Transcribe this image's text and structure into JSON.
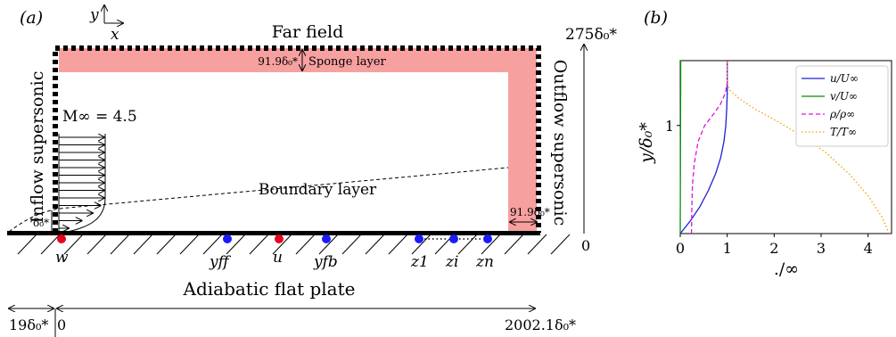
{
  "panel_a": {
    "label": "(a)",
    "axis_y": "y",
    "axis_x": "x",
    "far_field": "Far field",
    "top_height": "275δ₀*",
    "sponge_thickness": "91.9δ₀*",
    "sponge_layer": "Sponge layer",
    "inflow": "Inflow supersonic",
    "outflow": "Outflow supersonic",
    "mach": "M∞ = 4.5",
    "boundary_layer": "Boundary layer",
    "delta0": "δ₀*",
    "sponge_side_thickness": "91.9δ₀*",
    "zero_right": "0",
    "plate": "Adiabatic flat plate",
    "left_offset": "19δ₀*",
    "zero_bottom": "0",
    "length": "2002.1δ₀*",
    "probes": {
      "w": "w",
      "yff": "yff",
      "u": "u",
      "yfb": "yfb",
      "z1": "z1",
      "zi": "zi",
      "zn": "zn"
    },
    "colors": {
      "sponge": "#f7a0a0",
      "red_probe": "#e8001c",
      "blue_probe": "#1a1aff"
    }
  },
  "panel_b": {
    "label": "(b)",
    "chart_data": {
      "type": "line",
      "xlabel": "./∞",
      "ylabel": "y/δ₀*",
      "xlim": [
        0,
        4.5
      ],
      "ylim": [
        0,
        1.6
      ],
      "xticks": [
        0,
        1,
        2,
        3,
        4
      ],
      "yticks": [
        1
      ],
      "grid": false,
      "legend": "top-right",
      "series": [
        {
          "name": "u/U∞",
          "color": "#1f1fd6",
          "style": "solid",
          "x": [
            0,
            0.22,
            0.42,
            0.6,
            0.75,
            0.86,
            0.93,
            0.97,
            0.99,
            1.0,
            1.0
          ],
          "y": [
            0,
            0.12,
            0.25,
            0.4,
            0.55,
            0.7,
            0.85,
            1.0,
            1.15,
            1.3,
            1.6
          ]
        },
        {
          "name": "v/U∞",
          "color": "#0a8a0a",
          "style": "solid",
          "x": [
            0,
            0.002,
            0.004,
            0.006,
            0.008,
            0.01,
            0.01
          ],
          "y": [
            0,
            0.3,
            0.6,
            0.9,
            1.2,
            1.4,
            1.6
          ]
        },
        {
          "name": "ρ/ρ∞",
          "color": "#e010e0",
          "style": "dashed",
          "x": [
            0.24,
            0.245,
            0.26,
            0.3,
            0.38,
            0.52,
            0.7,
            0.86,
            0.96,
            1.0,
            1.0
          ],
          "y": [
            0,
            0.2,
            0.45,
            0.65,
            0.85,
            1.0,
            1.1,
            1.2,
            1.3,
            1.4,
            1.6
          ]
        },
        {
          "name": "T/T∞",
          "color": "#f0a000",
          "style": "dotted",
          "x": [
            4.45,
            4.3,
            4.0,
            3.6,
            3.1,
            2.6,
            2.1,
            1.6,
            1.25,
            1.05,
            1.0,
            1.0
          ],
          "y": [
            0,
            0.15,
            0.35,
            0.55,
            0.75,
            0.9,
            1.03,
            1.15,
            1.25,
            1.33,
            1.4,
            1.6
          ]
        }
      ]
    }
  }
}
